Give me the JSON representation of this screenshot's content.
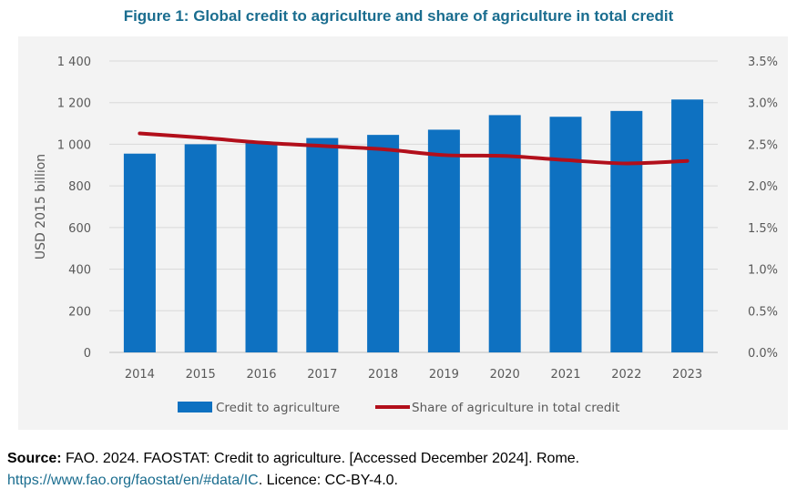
{
  "title": "Figure 1: Global credit to agriculture and share of agriculture in total credit",
  "colors": {
    "title": "#1a6d8f",
    "bar": "#0e71c1",
    "line": "#b20f1b",
    "background": "#f3f3f3",
    "grid": "#d9d9d9"
  },
  "chart_data": {
    "type": "bar",
    "categories": [
      "2014",
      "2015",
      "2016",
      "2017",
      "2018",
      "2019",
      "2020",
      "2021",
      "2022",
      "2023"
    ],
    "series": [
      {
        "name": "Credit to agriculture",
        "type": "bar",
        "axis": "left",
        "values": [
          955,
          1000,
          1010,
          1030,
          1045,
          1070,
          1140,
          1132,
          1160,
          1215
        ]
      },
      {
        "name": "Share of agriculture in total credit",
        "type": "line",
        "axis": "right",
        "values": [
          2.63,
          2.58,
          2.52,
          2.48,
          2.44,
          2.37,
          2.36,
          2.31,
          2.27,
          2.3
        ]
      }
    ],
    "ylabel": "USD 2015 billion",
    "ylim": [
      0,
      1400
    ],
    "y_ticks": [
      "0",
      "200",
      "400",
      "600",
      "800",
      "1 000",
      "1 200",
      "1 400"
    ],
    "y2lim": [
      0,
      3.5
    ],
    "y2_ticks": [
      "0.0%",
      "0.5%",
      "1.0%",
      "1.5%",
      "2.0%",
      "2.5%",
      "3.0%",
      "3.5%"
    ],
    "grid": true,
    "legend_position": "bottom"
  },
  "source": {
    "label": "Source:",
    "text": " FAO. 2024. FAOSTAT: Credit to agriculture. [Accessed December 2024]. Rome.",
    "link": "https://www.fao.org/faostat/en/#data/IC",
    "licence": ". Licence: CC-BY-4.0."
  }
}
